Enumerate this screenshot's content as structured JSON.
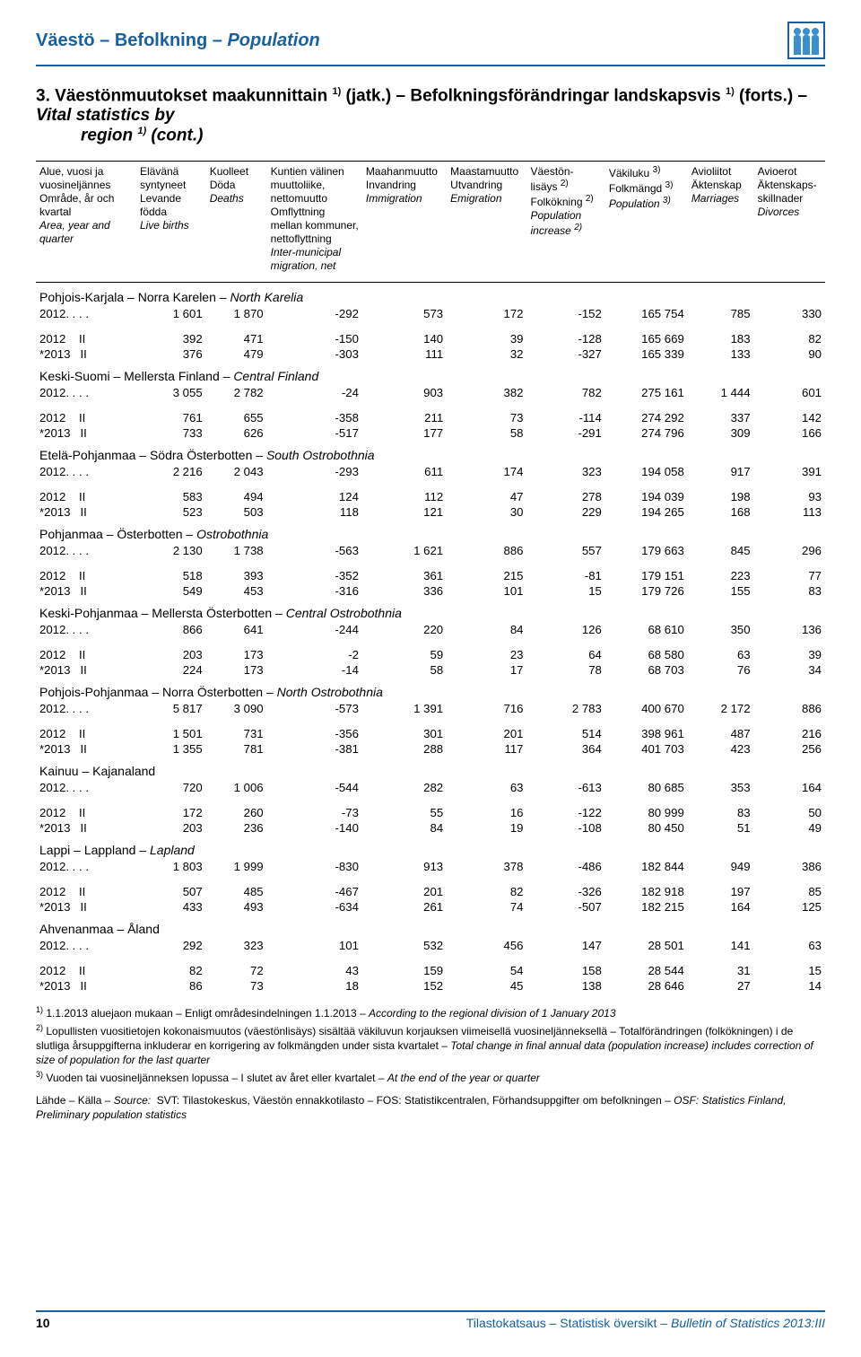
{
  "colors": {
    "brand": "#1a5fa0",
    "icon": "#3a8fd0",
    "rule": "#000000",
    "text": "#000000",
    "bg": "#ffffff"
  },
  "header": {
    "title_fi": "Väestö",
    "title_sv": "Befolkning",
    "title_en": "Population"
  },
  "section": {
    "num": "3.",
    "fi": "Väestönmuutokset maakunnittain",
    "sup1": "1)",
    "fi_cont": "(jatk.)",
    "sv": "Befolkningsförändringar landskapsvis",
    "sv_cont": "(forts.)",
    "en": "Vital statistics by",
    "en2": "region",
    "en_sup": "1)",
    "en_cont": "(cont.)"
  },
  "columns": [
    {
      "fi": "Alue, vuosi ja",
      "fi2": "vuosineljännes",
      "sv": "Område, år och",
      "sv2": "kvartal",
      "en": "Area, year and",
      "en2": "quarter"
    },
    {
      "fi": "Elävänä",
      "fi2": "syntyneet",
      "sv": "Levande",
      "sv2": "födda",
      "en": "Live births"
    },
    {
      "fi": "Kuolleet",
      "sv": "Döda",
      "en": "Deaths"
    },
    {
      "fi": "Kuntien välinen",
      "fi2": "muuttoliike,",
      "fi3": "nettomuutto",
      "sv": "Omflyttning",
      "sv2": "mellan kommuner,",
      "sv3": "nettoflyttning",
      "en": "Inter-municipal",
      "en2": "migration, net"
    },
    {
      "fi": "Maahanmuutto",
      "sv": "Invandring",
      "en": "Immigration"
    },
    {
      "fi": "Maastamuutto",
      "sv": "Utvandring",
      "en": "Emigration"
    },
    {
      "fi": "Väestön-",
      "fi2": "lisäys",
      "sup": "2)",
      "sv": "Folkökning",
      "sv_sup": "2)",
      "en": "Population",
      "en2": "increase",
      "en_sup": "2)"
    },
    {
      "fi": "Väkiluku",
      "sup": "3)",
      "sv": "Folkmängd",
      "sv_sup": "3)",
      "en": "Population",
      "en_sup": "3)"
    },
    {
      "fi": "Avioliitot",
      "sv": "Äktenskap",
      "en": "Marriages"
    },
    {
      "fi": "Avioerot",
      "sv": "Äktenskaps-",
      "sv2": "skillnader",
      "en": "Divorces"
    }
  ],
  "regions": [
    {
      "name_fi": "Pohjois-Karjala",
      "name_sv": "Norra Karelen",
      "name_en": "North Karelia",
      "y": {
        "label": "2012. . . .",
        "v": [
          "1 601",
          "1 870",
          "-292",
          "573",
          "172",
          "-152",
          "165 754",
          "785",
          "330"
        ]
      },
      "q": [
        {
          "label": "2012    II",
          "v": [
            "392",
            "471",
            "-150",
            "140",
            "39",
            "-128",
            "165 669",
            "183",
            "82"
          ]
        },
        {
          "label": "*2013   II",
          "v": [
            "376",
            "479",
            "-303",
            "111",
            "32",
            "-327",
            "165 339",
            "133",
            "90"
          ]
        }
      ]
    },
    {
      "name_fi": "Keski-Suomi",
      "name_sv": "Mellersta Finland",
      "name_en": "Central Finland",
      "y": {
        "label": "2012. . . .",
        "v": [
          "3 055",
          "2 782",
          "-24",
          "903",
          "382",
          "782",
          "275 161",
          "1 444",
          "601"
        ]
      },
      "q": [
        {
          "label": "2012    II",
          "v": [
            "761",
            "655",
            "-358",
            "211",
            "73",
            "-114",
            "274 292",
            "337",
            "142"
          ]
        },
        {
          "label": "*2013   II",
          "v": [
            "733",
            "626",
            "-517",
            "177",
            "58",
            "-291",
            "274 796",
            "309",
            "166"
          ]
        }
      ]
    },
    {
      "name_fi": "Etelä-Pohjanmaa",
      "name_sv": "Södra Österbotten",
      "name_en": "South Ostrobothnia",
      "y": {
        "label": "2012. . . .",
        "v": [
          "2 216",
          "2 043",
          "-293",
          "611",
          "174",
          "323",
          "194 058",
          "917",
          "391"
        ]
      },
      "q": [
        {
          "label": "2012    II",
          "v": [
            "583",
            "494",
            "124",
            "112",
            "47",
            "278",
            "194 039",
            "198",
            "93"
          ]
        },
        {
          "label": "*2013   II",
          "v": [
            "523",
            "503",
            "118",
            "121",
            "30",
            "229",
            "194 265",
            "168",
            "113"
          ]
        }
      ]
    },
    {
      "name_fi": "Pohjanmaa",
      "name_sv": "Österbotten",
      "name_en": "Ostrobothnia",
      "y": {
        "label": "2012. . . .",
        "v": [
          "2 130",
          "1 738",
          "-563",
          "1 621",
          "886",
          "557",
          "179 663",
          "845",
          "296"
        ]
      },
      "q": [
        {
          "label": "2012    II",
          "v": [
            "518",
            "393",
            "-352",
            "361",
            "215",
            "-81",
            "179 151",
            "223",
            "77"
          ]
        },
        {
          "label": "*2013   II",
          "v": [
            "549",
            "453",
            "-316",
            "336",
            "101",
            "15",
            "179 726",
            "155",
            "83"
          ]
        }
      ]
    },
    {
      "name_fi": "Keski-Pohjanmaa",
      "name_sv": "Mellersta Österbotten",
      "name_en": "Central Ostrobothnia",
      "y": {
        "label": "2012. . . .",
        "v": [
          "866",
          "641",
          "-244",
          "220",
          "84",
          "126",
          "68 610",
          "350",
          "136"
        ]
      },
      "q": [
        {
          "label": "2012    II",
          "v": [
            "203",
            "173",
            "-2",
            "59",
            "23",
            "64",
            "68 580",
            "63",
            "39"
          ]
        },
        {
          "label": "*2013   II",
          "v": [
            "224",
            "173",
            "-14",
            "58",
            "17",
            "78",
            "68 703",
            "76",
            "34"
          ]
        }
      ]
    },
    {
      "name_fi": "Pohjois-Pohjanmaa",
      "name_sv": "Norra Österbotten",
      "name_en": "North Ostrobothnia",
      "y": {
        "label": "2012. . . .",
        "v": [
          "5 817",
          "3 090",
          "-573",
          "1 391",
          "716",
          "2 783",
          "400 670",
          "2 172",
          "886"
        ]
      },
      "q": [
        {
          "label": "2012    II",
          "v": [
            "1 501",
            "731",
            "-356",
            "301",
            "201",
            "514",
            "398 961",
            "487",
            "216"
          ]
        },
        {
          "label": "*2013   II",
          "v": [
            "1 355",
            "781",
            "-381",
            "288",
            "117",
            "364",
            "401 703",
            "423",
            "256"
          ]
        }
      ]
    },
    {
      "name_fi": "Kainuu",
      "name_sv": "Kajanaland",
      "name_en": "",
      "y": {
        "label": "2012. . . .",
        "v": [
          "720",
          "1 006",
          "-544",
          "282",
          "63",
          "-613",
          "80 685",
          "353",
          "164"
        ]
      },
      "q": [
        {
          "label": "2012    II",
          "v": [
            "172",
            "260",
            "-73",
            "55",
            "16",
            "-122",
            "80 999",
            "83",
            "50"
          ]
        },
        {
          "label": "*2013   II",
          "v": [
            "203",
            "236",
            "-140",
            "84",
            "19",
            "-108",
            "80 450",
            "51",
            "49"
          ]
        }
      ]
    },
    {
      "name_fi": "Lappi",
      "name_sv": "Lappland",
      "name_en": "Lapland",
      "y": {
        "label": "2012. . . .",
        "v": [
          "1 803",
          "1 999",
          "-830",
          "913",
          "378",
          "-486",
          "182 844",
          "949",
          "386"
        ]
      },
      "q": [
        {
          "label": "2012    II",
          "v": [
            "507",
            "485",
            "-467",
            "201",
            "82",
            "-326",
            "182 918",
            "197",
            "85"
          ]
        },
        {
          "label": "*2013   II",
          "v": [
            "433",
            "493",
            "-634",
            "261",
            "74",
            "-507",
            "182 215",
            "164",
            "125"
          ]
        }
      ]
    },
    {
      "name_fi": "Ahvenanmaa",
      "name_sv": "Åland",
      "name_en": "",
      "y": {
        "label": "2012. . . .",
        "v": [
          "292",
          "323",
          "101",
          "532",
          "456",
          "147",
          "28 501",
          "141",
          "63"
        ]
      },
      "q": [
        {
          "label": "2012    II",
          "v": [
            "82",
            "72",
            "43",
            "159",
            "54",
            "158",
            "28 544",
            "31",
            "15"
          ]
        },
        {
          "label": "*2013   II",
          "v": [
            "86",
            "73",
            "18",
            "152",
            "45",
            "138",
            "28 646",
            "27",
            "14"
          ]
        }
      ]
    }
  ],
  "footnotes": {
    "n1": "1.1.2013 aluejaon mukaan – Enligt områdesindelningen 1.1.2013 –",
    "n1_en": "According to the regional division of 1 January 2013",
    "n2": "Lopullisten vuositietojen kokonaismuutos (väestönlisäys) sisältää väkiluvun korjauksen viimeisellä vuosineljänneksellä – Totalförändringen (folkökningen) i de slutliga årsuppgifterna inkluderar en korrigering av folkmängden under sista kvartalet –",
    "n2_en": "Total change in final annual data (population increase) includes correction of size of population for the last quarter",
    "n3": "Vuoden tai vuosineljänneksen lopussa – I slutet av året eller kvartalet –",
    "n3_en": "At the end of the year or quarter",
    "src_label": "Lähde – Källa –",
    "src_label_en": "Source:",
    "src": "SVT: Tilastokeskus, Väestön ennakkotilasto – FOS: Statistikcentralen, Förhandsuppgifter om befolkningen –",
    "src_en": "OSF: Statistics Finland, Preliminary population statistics"
  },
  "footer": {
    "page": "10",
    "pub_fi": "Tilastokatsaus",
    "pub_sv": "Statistisk översikt",
    "pub_en": "Bulletin of Statistics 2013:III"
  }
}
